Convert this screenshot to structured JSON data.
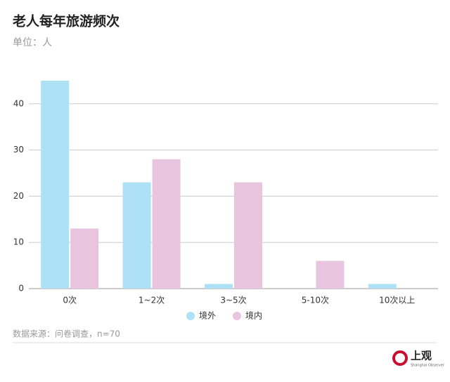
{
  "chart_data": {
    "type": "bar",
    "title": "老人每年旅游频次",
    "subtitle": "单位：人",
    "categories": [
      "0次",
      "1~2次",
      "3~5次",
      "5-10次",
      "10次以上"
    ],
    "series": [
      {
        "name": "境外",
        "color": "#aee0f6",
        "values": [
          45,
          23,
          1,
          0,
          1
        ]
      },
      {
        "name": "境内",
        "color": "#e8c4df",
        "values": [
          13,
          28,
          23,
          6,
          0
        ]
      }
    ],
    "ylim": [
      0,
      50
    ],
    "yticks": [
      0,
      10,
      20,
      30,
      40
    ],
    "grid": true,
    "source": "数据来源：问卷调查，n=70",
    "logo": "上观",
    "logo_sub": "Shanghai Observer"
  }
}
